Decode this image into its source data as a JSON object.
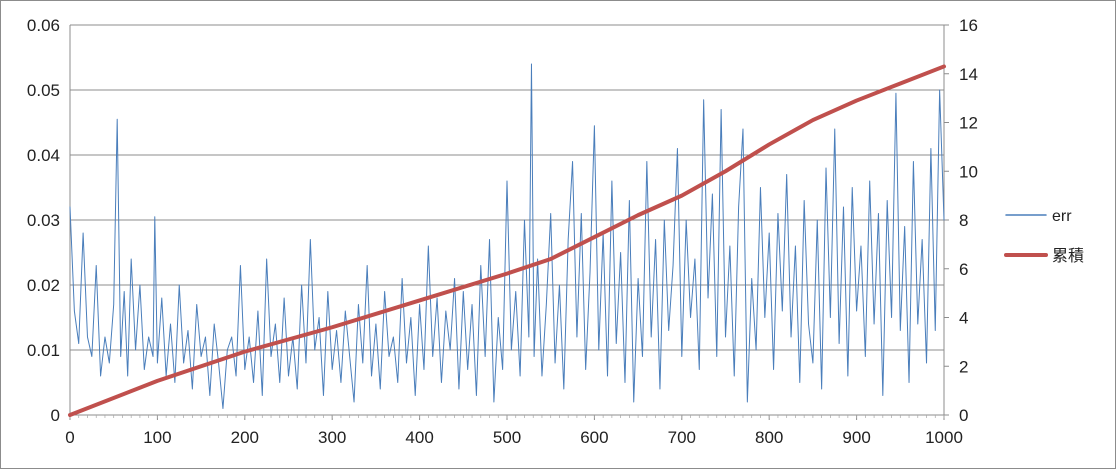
{
  "chart_data": {
    "type": "line",
    "title": "",
    "xlabel": "",
    "ylabel": "",
    "x_ticks": [
      "0",
      "100",
      "200",
      "300",
      "400",
      "500",
      "600",
      "700",
      "800",
      "900",
      "1000"
    ],
    "xlim": [
      0,
      1000
    ],
    "ylim_left": [
      0,
      0.06
    ],
    "y_ticks_left": [
      "0",
      "0.01",
      "0.02",
      "0.03",
      "0.04",
      "0.05",
      "0.06"
    ],
    "ylim_right": [
      0,
      16
    ],
    "y_ticks_right": [
      "0",
      "2",
      "4",
      "6",
      "8",
      "10",
      "12",
      "14",
      "16"
    ],
    "grid": true,
    "legend_position": "right",
    "series": [
      {
        "name": "err",
        "axis": "left",
        "color": "#4a7ebb",
        "points": [
          [
            0,
            0.032
          ],
          [
            5,
            0.016
          ],
          [
            10,
            0.011
          ],
          [
            15,
            0.028
          ],
          [
            20,
            0.012
          ],
          [
            25,
            0.009
          ],
          [
            30,
            0.023
          ],
          [
            35,
            0.006
          ],
          [
            40,
            0.012
          ],
          [
            45,
            0.008
          ],
          [
            50,
            0.017
          ],
          [
            54,
            0.0455
          ],
          [
            58,
            0.009
          ],
          [
            62,
            0.019
          ],
          [
            66,
            0.006
          ],
          [
            70,
            0.024
          ],
          [
            75,
            0.01
          ],
          [
            80,
            0.02
          ],
          [
            85,
            0.007
          ],
          [
            90,
            0.012
          ],
          [
            95,
            0.009
          ],
          [
            97,
            0.0305
          ],
          [
            100,
            0.008
          ],
          [
            105,
            0.018
          ],
          [
            110,
            0.006
          ],
          [
            115,
            0.014
          ],
          [
            120,
            0.005
          ],
          [
            125,
            0.02
          ],
          [
            130,
            0.008
          ],
          [
            135,
            0.013
          ],
          [
            140,
            0.004
          ],
          [
            145,
            0.017
          ],
          [
            150,
            0.009
          ],
          [
            155,
            0.012
          ],
          [
            160,
            0.003
          ],
          [
            165,
            0.014
          ],
          [
            170,
            0.008
          ],
          [
            175,
            0.001
          ],
          [
            180,
            0.01
          ],
          [
            185,
            0.012
          ],
          [
            190,
            0.006
          ],
          [
            195,
            0.023
          ],
          [
            200,
            0.007
          ],
          [
            205,
            0.012
          ],
          [
            210,
            0.005
          ],
          [
            215,
            0.016
          ],
          [
            220,
            0.003
          ],
          [
            225,
            0.024
          ],
          [
            230,
            0.009
          ],
          [
            235,
            0.014
          ],
          [
            240,
            0.005
          ],
          [
            245,
            0.018
          ],
          [
            250,
            0.006
          ],
          [
            255,
            0.012
          ],
          [
            260,
            0.004
          ],
          [
            265,
            0.02
          ],
          [
            270,
            0.008
          ],
          [
            275,
            0.027
          ],
          [
            280,
            0.01
          ],
          [
            285,
            0.015
          ],
          [
            290,
            0.003
          ],
          [
            295,
            0.019
          ],
          [
            300,
            0.007
          ],
          [
            305,
            0.013
          ],
          [
            310,
            0.005
          ],
          [
            315,
            0.016
          ],
          [
            320,
            0.009
          ],
          [
            325,
            0.002
          ],
          [
            330,
            0.017
          ],
          [
            335,
            0.008
          ],
          [
            340,
            0.023
          ],
          [
            345,
            0.006
          ],
          [
            350,
            0.014
          ],
          [
            355,
            0.004
          ],
          [
            360,
            0.019
          ],
          [
            365,
            0.009
          ],
          [
            370,
            0.012
          ],
          [
            375,
            0.005
          ],
          [
            380,
            0.021
          ],
          [
            385,
            0.008
          ],
          [
            390,
            0.015
          ],
          [
            395,
            0.003
          ],
          [
            400,
            0.017
          ],
          [
            405,
            0.007
          ],
          [
            410,
            0.026
          ],
          [
            415,
            0.009
          ],
          [
            420,
            0.018
          ],
          [
            425,
            0.005
          ],
          [
            430,
            0.016
          ],
          [
            435,
            0.01
          ],
          [
            440,
            0.021
          ],
          [
            445,
            0.004
          ],
          [
            450,
            0.019
          ],
          [
            455,
            0.007
          ],
          [
            460,
            0.017
          ],
          [
            465,
            0.003
          ],
          [
            470,
            0.023
          ],
          [
            475,
            0.009
          ],
          [
            480,
            0.027
          ],
          [
            485,
            0.002
          ],
          [
            490,
            0.015
          ],
          [
            495,
            0.007
          ],
          [
            500,
            0.036
          ],
          [
            505,
            0.01
          ],
          [
            510,
            0.019
          ],
          [
            515,
            0.006
          ],
          [
            520,
            0.03
          ],
          [
            525,
            0.012
          ],
          [
            528,
            0.054
          ],
          [
            531,
            0.009
          ],
          [
            535,
            0.024
          ],
          [
            540,
            0.006
          ],
          [
            545,
            0.017
          ],
          [
            550,
            0.031
          ],
          [
            555,
            0.008
          ],
          [
            560,
            0.02
          ],
          [
            565,
            0.004
          ],
          [
            570,
            0.027
          ],
          [
            575,
            0.039
          ],
          [
            580,
            0.012
          ],
          [
            585,
            0.031
          ],
          [
            590,
            0.007
          ],
          [
            595,
            0.022
          ],
          [
            600,
            0.0445
          ],
          [
            605,
            0.01
          ],
          [
            610,
            0.028
          ],
          [
            615,
            0.006
          ],
          [
            620,
            0.036
          ],
          [
            625,
            0.011
          ],
          [
            630,
            0.025
          ],
          [
            635,
            0.005
          ],
          [
            640,
            0.033
          ],
          [
            645,
            0.002
          ],
          [
            650,
            0.021
          ],
          [
            655,
            0.009
          ],
          [
            660,
            0.039
          ],
          [
            665,
            0.012
          ],
          [
            670,
            0.027
          ],
          [
            675,
            0.004
          ],
          [
            680,
            0.03
          ],
          [
            685,
            0.013
          ],
          [
            690,
            0.023
          ],
          [
            695,
            0.041
          ],
          [
            700,
            0.009
          ],
          [
            705,
            0.03
          ],
          [
            710,
            0.015
          ],
          [
            715,
            0.024
          ],
          [
            720,
            0.007
          ],
          [
            725,
            0.0485
          ],
          [
            730,
            0.018
          ],
          [
            735,
            0.034
          ],
          [
            740,
            0.009
          ],
          [
            745,
            0.047
          ],
          [
            750,
            0.012
          ],
          [
            755,
            0.026
          ],
          [
            760,
            0.006
          ],
          [
            765,
            0.032
          ],
          [
            770,
            0.044
          ],
          [
            775,
            0.002
          ],
          [
            780,
            0.021
          ],
          [
            785,
            0.01
          ],
          [
            790,
            0.035
          ],
          [
            795,
            0.015
          ],
          [
            800,
            0.028
          ],
          [
            805,
            0.007
          ],
          [
            810,
            0.031
          ],
          [
            815,
            0.016
          ],
          [
            820,
            0.037
          ],
          [
            825,
            0.012
          ],
          [
            830,
            0.026
          ],
          [
            835,
            0.005
          ],
          [
            840,
            0.033
          ],
          [
            845,
            0.014
          ],
          [
            850,
            0.008
          ],
          [
            855,
            0.03
          ],
          [
            860,
            0.004
          ],
          [
            865,
            0.038
          ],
          [
            870,
            0.015
          ],
          [
            875,
            0.044
          ],
          [
            880,
            0.011
          ],
          [
            885,
            0.032
          ],
          [
            890,
            0.006
          ],
          [
            895,
            0.035
          ],
          [
            900,
            0.016
          ],
          [
            905,
            0.026
          ],
          [
            910,
            0.009
          ],
          [
            915,
            0.036
          ],
          [
            920,
            0.014
          ],
          [
            925,
            0.031
          ],
          [
            930,
            0.003
          ],
          [
            935,
            0.033
          ],
          [
            940,
            0.015
          ],
          [
            945,
            0.0495
          ],
          [
            950,
            0.013
          ],
          [
            955,
            0.029
          ],
          [
            960,
            0.005
          ],
          [
            965,
            0.039
          ],
          [
            970,
            0.014
          ],
          [
            975,
            0.027
          ],
          [
            980,
            0.008
          ],
          [
            985,
            0.041
          ],
          [
            990,
            0.013
          ],
          [
            995,
            0.05
          ],
          [
            1000,
            0.03
          ]
        ]
      },
      {
        "name": "累積",
        "axis": "right",
        "color": "#c0504d",
        "points": [
          [
            0,
            0
          ],
          [
            100,
            1.4
          ],
          [
            200,
            2.6
          ],
          [
            300,
            3.6
          ],
          [
            400,
            4.7
          ],
          [
            500,
            5.8
          ],
          [
            550,
            6.4
          ],
          [
            600,
            7.3
          ],
          [
            650,
            8.2
          ],
          [
            700,
            9.0
          ],
          [
            750,
            10.0
          ],
          [
            800,
            11.1
          ],
          [
            850,
            12.1
          ],
          [
            900,
            12.9
          ],
          [
            950,
            13.6
          ],
          [
            1000,
            14.3
          ]
        ]
      }
    ]
  }
}
